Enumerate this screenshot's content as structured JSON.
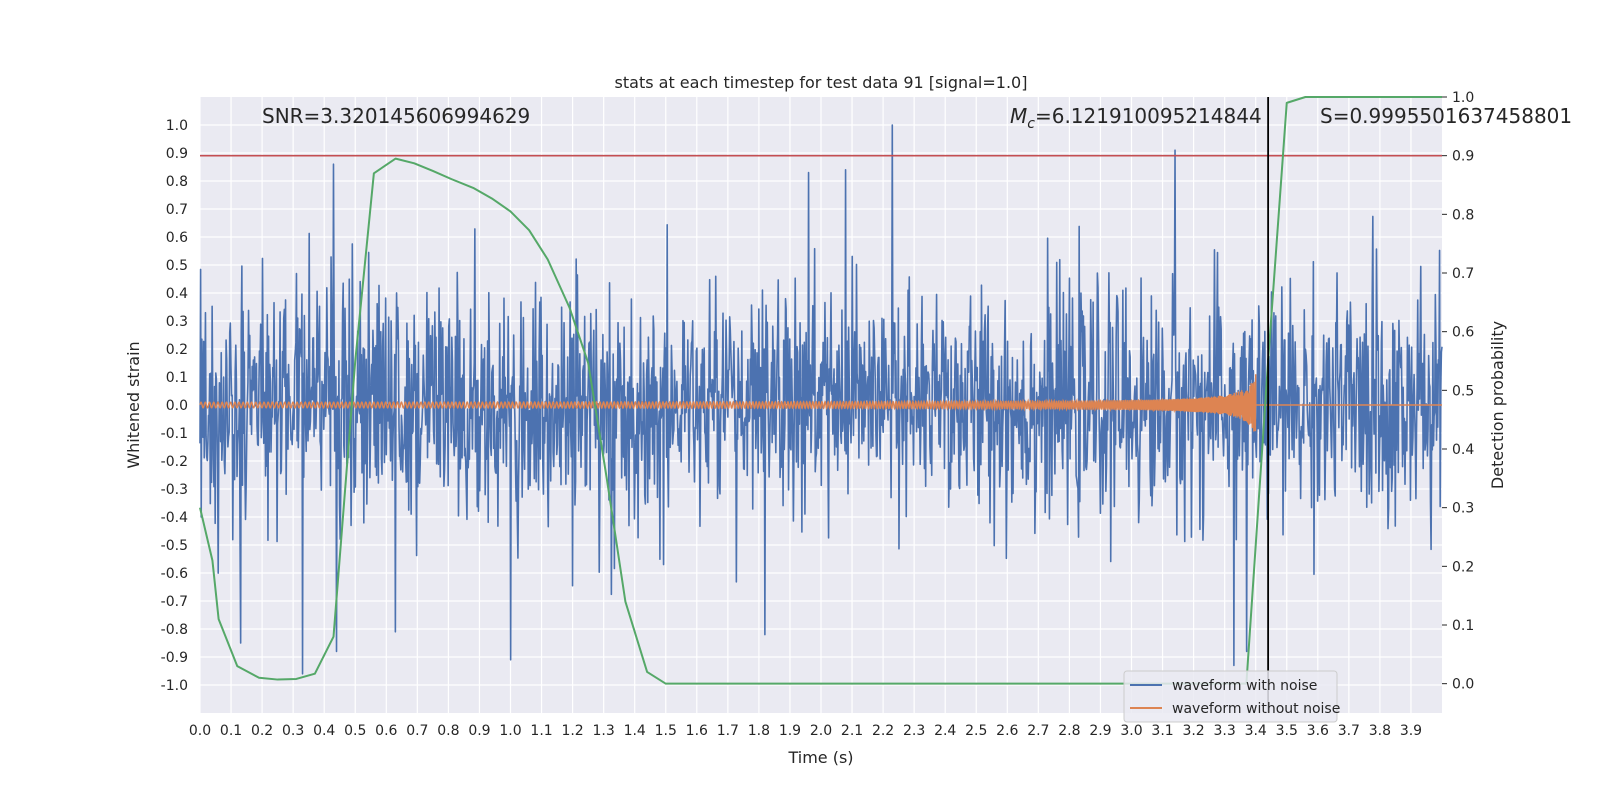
{
  "chart_data": {
    "type": "line",
    "title": "stats at each timestep for test data 91 [signal=1.0]",
    "xlabel": "Time (s)",
    "ylabel": "Whitened strain",
    "y2label": "Detection probability",
    "xlim": [
      0.0,
      4.0
    ],
    "ylim": [
      -1.1,
      1.1
    ],
    "y2lim": [
      -0.05,
      1.0
    ],
    "x_ticks": [
      "0.0",
      "0.1",
      "0.2",
      "0.3",
      "0.4",
      "0.5",
      "0.6",
      "0.7",
      "0.8",
      "0.9",
      "1.0",
      "1.1",
      "1.2",
      "1.3",
      "1.4",
      "1.5",
      "1.6",
      "1.7",
      "1.8",
      "1.9",
      "2.0",
      "2.1",
      "2.2",
      "2.3",
      "2.4",
      "2.5",
      "2.6",
      "2.7",
      "2.8",
      "2.9",
      "3.0",
      "3.1",
      "3.2",
      "3.3",
      "3.4",
      "3.5",
      "3.6",
      "3.7",
      "3.8",
      "3.9"
    ],
    "y_ticks": [
      "1.0",
      "0.9",
      "0.8",
      "0.7",
      "0.6",
      "0.5",
      "0.4",
      "0.3",
      "0.2",
      "0.1",
      "0.0",
      "-0.1",
      "-0.2",
      "-0.3",
      "-0.4",
      "-0.5",
      "-0.6",
      "-0.7",
      "-0.8",
      "-0.9",
      "-1.0"
    ],
    "y2_ticks": [
      "1.0",
      "0.9",
      "0.8",
      "0.7",
      "0.6",
      "0.5",
      "0.4",
      "0.3",
      "0.2",
      "0.1",
      "0.0"
    ],
    "grid": true,
    "legend_position": "lower-right",
    "threshold": {
      "axis": "right",
      "value": 0.9,
      "color": "#c44e52"
    },
    "vline": {
      "x": 3.44,
      "y2_from": -0.05,
      "y2_to": 1.0,
      "color": "#000000"
    },
    "annotations": {
      "snr": "SNR=3.320145606994629",
      "mc_symbol": "M",
      "mc_sub": "c",
      "mc_value": "=6.121910095214844",
      "s": "S=0.9995501637458801"
    },
    "noise_seed": 91,
    "series": [
      {
        "name": "waveform with noise",
        "axis": "left",
        "color": "#4c72b0",
        "kind": "noise",
        "n_samples": 2048,
        "amplitude_std": 0.2,
        "peaks": [
          {
            "x": 0.43,
            "y": 0.86
          },
          {
            "x": 0.44,
            "y": -0.88
          },
          {
            "x": 0.33,
            "y": -0.96
          },
          {
            "x": 0.88,
            "y": 0.05
          },
          {
            "x": 1.0,
            "y": -0.91
          },
          {
            "x": 1.96,
            "y": 0.83
          },
          {
            "x": 2.08,
            "y": 0.84
          },
          {
            "x": 2.23,
            "y": 1.0
          },
          {
            "x": 3.14,
            "y": 0.91
          },
          {
            "x": 3.33,
            "y": -0.93
          },
          {
            "x": 3.37,
            "y": -0.88
          },
          {
            "x": 0.13,
            "y": -0.85
          },
          {
            "x": 0.63,
            "y": -0.81
          },
          {
            "x": 1.82,
            "y": -0.82
          }
        ]
      },
      {
        "name": "waveform without noise",
        "axis": "left",
        "color": "#dd8452",
        "kind": "chirp",
        "t_end": 3.4,
        "amp_start": 0.01,
        "amp_end": 0.11
      },
      {
        "name": "detection probability",
        "axis": "right",
        "color": "#55a868",
        "kind": "line",
        "x": [
          0.0,
          0.04,
          0.06,
          0.12,
          0.19,
          0.25,
          0.31,
          0.37,
          0.43,
          0.5,
          0.56,
          0.63,
          0.69,
          0.75,
          0.81,
          0.88,
          0.94,
          1.0,
          1.06,
          1.12,
          1.19,
          1.25,
          1.31,
          1.37,
          1.44,
          1.5,
          1.56,
          3.37,
          3.44,
          3.5,
          3.56,
          4.0
        ],
        "y": [
          0.3,
          0.21,
          0.11,
          0.03,
          0.01,
          0.007,
          0.008,
          0.017,
          0.08,
          0.55,
          0.87,
          0.895,
          0.887,
          0.874,
          0.86,
          0.845,
          0.827,
          0.805,
          0.773,
          0.723,
          0.641,
          0.547,
          0.35,
          0.14,
          0.02,
          0.0,
          0.0,
          0.0,
          0.55,
          0.99,
          1.0,
          1.0
        ]
      }
    ]
  }
}
